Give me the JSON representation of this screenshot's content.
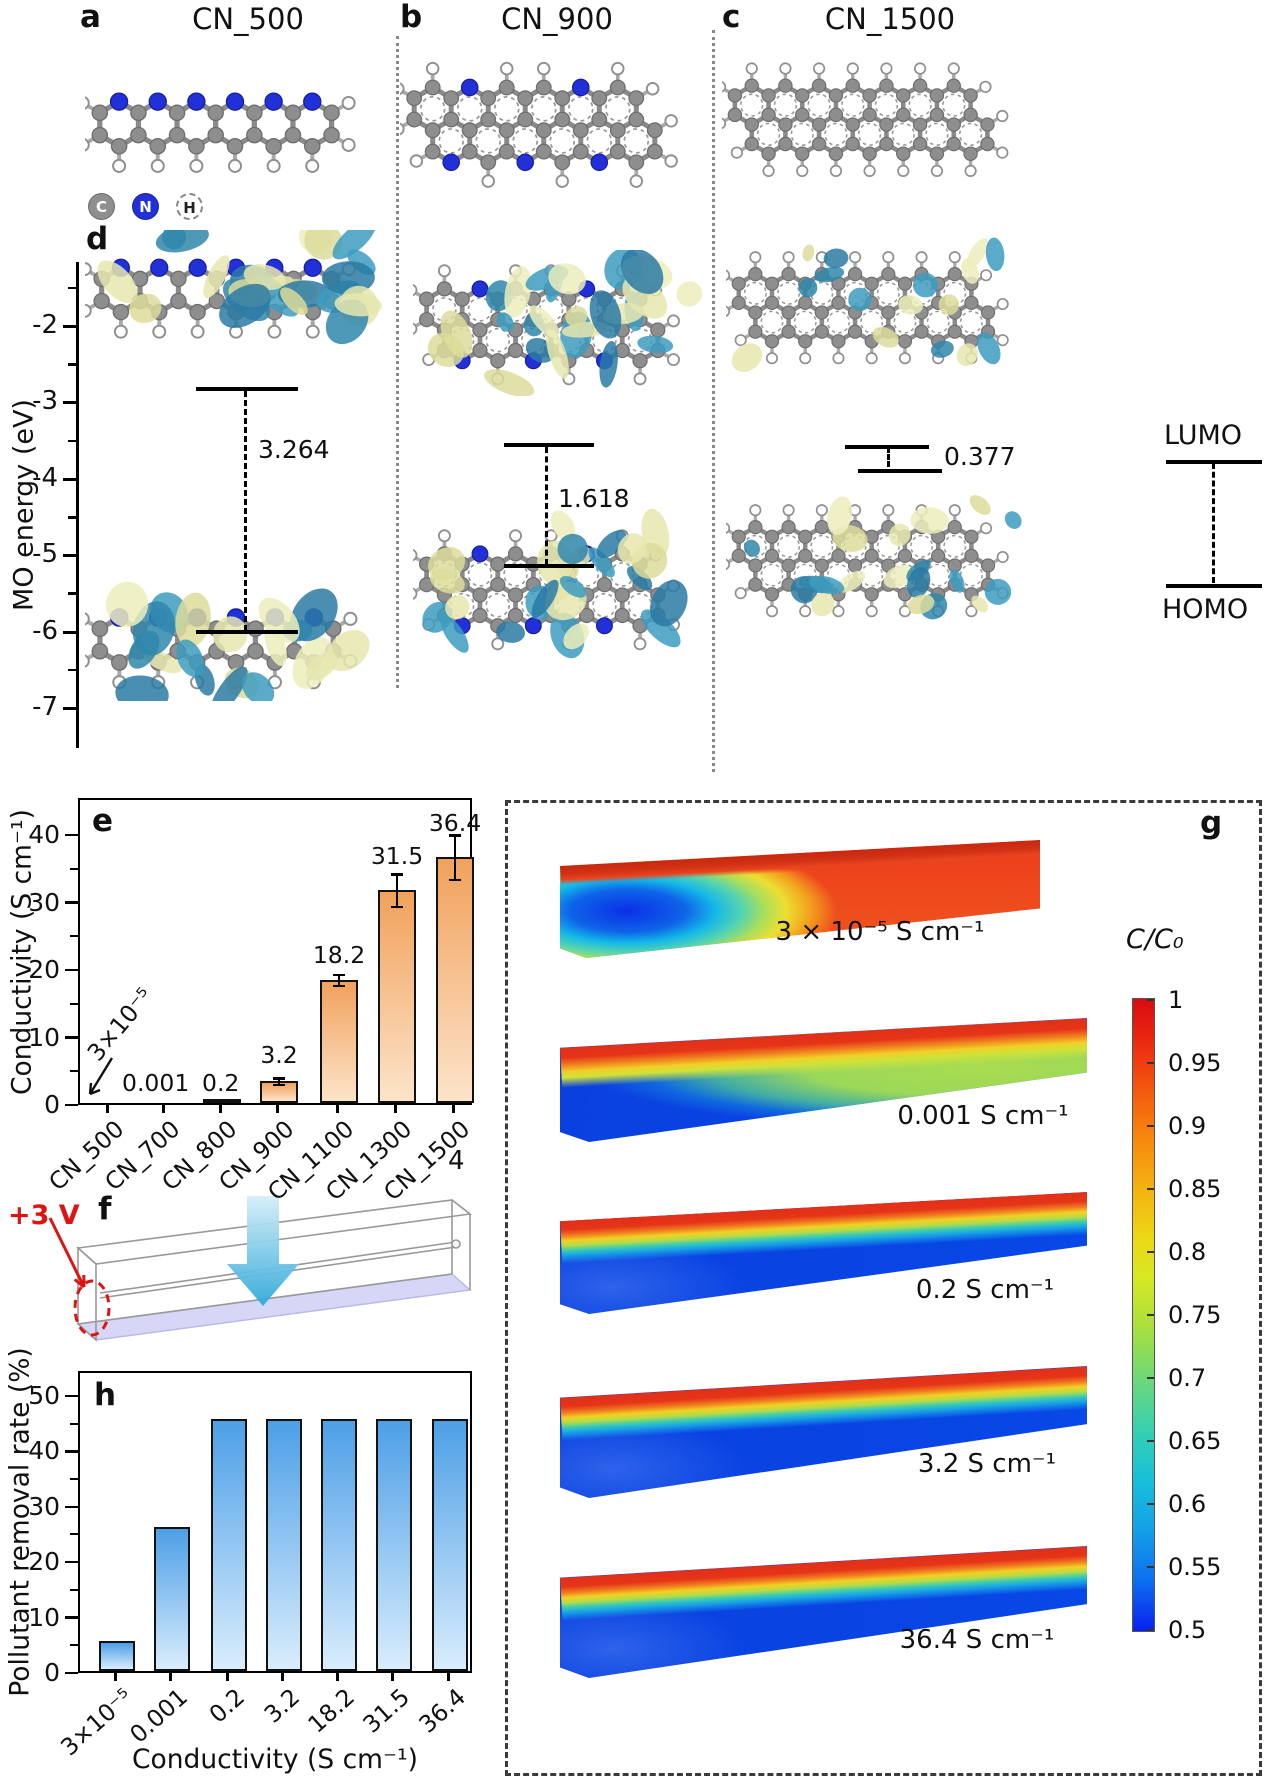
{
  "figure": {
    "header": {
      "panel_a_label": "a",
      "panel_a_title": "CN_500",
      "panel_b_label": "b",
      "panel_b_title": "CN_900",
      "panel_c_label": "c",
      "panel_c_title": "CN_1500"
    },
    "atom_legend": [
      {
        "symbol": "C",
        "color": "#8f8f8f"
      },
      {
        "symbol": "N",
        "color": "#2230d8"
      },
      {
        "symbol": "H",
        "color": "#ffffff"
      }
    ],
    "panel_d": {
      "label": "d",
      "ylabel": "MO energy (eV)",
      "yticks": [
        -2,
        -3,
        -4,
        -5,
        -6,
        -7
      ],
      "gap_cn500": "3.264",
      "gap_cn900": "1.618",
      "gap_cn1500": "0.377",
      "lumo_label": "LUMO",
      "homo_label": "HOMO"
    },
    "panel_e": {
      "label": "e",
      "stray_text": "4"
    },
    "panel_f": {
      "label": "f",
      "voltage": "+3 V"
    },
    "panel_g": {
      "label": "g",
      "colorbar_title": "C/C₀",
      "colorbar_ticks": [
        "1",
        "0.95",
        "0.9",
        "0.85",
        "0.8",
        "0.75",
        "0.7",
        "0.65",
        "0.6",
        "0.55",
        "0.5"
      ],
      "plot_labels": [
        "3 × 10⁻⁵ S cm⁻¹",
        "0.001 S cm⁻¹",
        "0.2 S cm⁻¹",
        "3.2 S cm⁻¹",
        "36.4 S cm⁻¹"
      ]
    },
    "panel_h": {
      "label": "h"
    }
  },
  "chart_data": [
    {
      "id": "e",
      "type": "bar",
      "categories": [
        "CN_500",
        "CN_700",
        "CN_800",
        "CN_900",
        "CN_1100",
        "CN_1300",
        "CN_1500"
      ],
      "values": [
        3e-05,
        0.001,
        0.2,
        3.2,
        18.2,
        31.5,
        36.4
      ],
      "value_labels": [
        "3×10⁻⁵",
        "0.001",
        "0.2",
        "3.2",
        "18.2",
        "31.5",
        "36.4"
      ],
      "errors": [
        0,
        0,
        0,
        0.5,
        0.8,
        2.4,
        3.3
      ],
      "ylabel": "Conductivity (S cm⁻¹)",
      "yticks": [
        0,
        10,
        20,
        30,
        40
      ],
      "ylim": [
        0,
        45.5
      ],
      "grid": false,
      "bar_color_top": "#f1a15c",
      "bar_color_bottom": "#fce4ca"
    },
    {
      "id": "h",
      "type": "bar",
      "categories": [
        "3×10⁻⁵",
        "0.001",
        "0.2",
        "3.2",
        "18.2",
        "31.5",
        "36.4"
      ],
      "values": [
        5.5,
        26,
        45.5,
        45.5,
        45.5,
        45.5,
        45.5
      ],
      "xlabel": "Conductivity (S cm⁻¹)",
      "ylabel": "Pollutant removal rate (%)",
      "yticks": [
        0,
        10,
        20,
        30,
        40,
        50
      ],
      "ylim": [
        0,
        54.5
      ],
      "grid": false,
      "bar_color_top": "#4d9fe6",
      "bar_color_bottom": "#d9edfc"
    },
    {
      "id": "d",
      "type": "energy-levels",
      "ylabel": "MO energy (eV)",
      "ylim": [
        -7.5,
        -1.2
      ],
      "series": [
        {
          "name": "CN_500",
          "lumo_eV": -2.83,
          "homo_eV": -6.09,
          "gap_eV": 3.264
        },
        {
          "name": "CN_900",
          "lumo_eV": -3.58,
          "homo_eV": -5.2,
          "gap_eV": 1.618
        },
        {
          "name": "CN_1500",
          "lumo_eV": -3.58,
          "homo_eV": -3.96,
          "gap_eV": 0.377
        }
      ]
    },
    {
      "id": "g",
      "type": "heatmap",
      "series_labels": [
        "3 × 10⁻⁵ S cm⁻¹",
        "0.001 S cm⁻¹",
        "0.2 S cm⁻¹",
        "3.2 S cm⁻¹",
        "36.4 S cm⁻¹"
      ],
      "colorbar": {
        "title": "C/C₀",
        "min": 0.5,
        "max": 1,
        "ticks": [
          1,
          0.95,
          0.9,
          0.85,
          0.8,
          0.75,
          0.7,
          0.65,
          0.6,
          0.55,
          0.5
        ]
      }
    }
  ]
}
